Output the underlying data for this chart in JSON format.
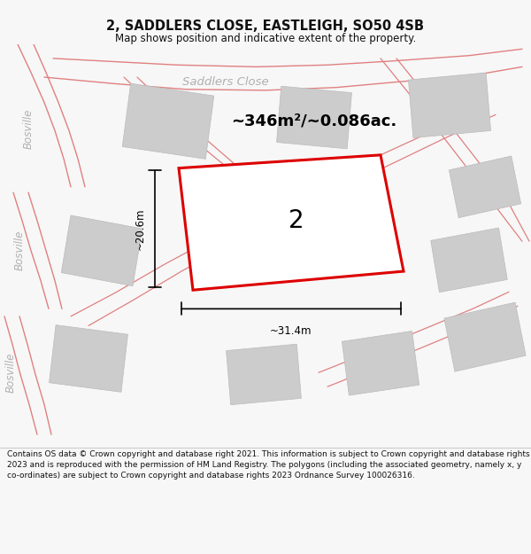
{
  "title": "2, SADDLERS CLOSE, EASTLEIGH, SO50 4SB",
  "subtitle": "Map shows position and indicative extent of the property.",
  "footer": "Contains OS data © Crown copyright and database right 2021. This information is subject to Crown copyright and database rights 2023 and is reproduced with the permission of HM Land Registry. The polygons (including the associated geometry, namely x, y co-ordinates) are subject to Crown copyright and database rights 2023 Ordnance Survey 100026316.",
  "bg_color": "#f7f7f7",
  "map_bg": "#f0f0f0",
  "road_line_color": "#e08080",
  "building_color": "#cccccc",
  "building_edge": "#bbbbbb",
  "highlight_color": "#dd0000",
  "street_label_color": "#b0b0b0",
  "area_label": "~346m²/~0.086ac.",
  "number_label": "2",
  "dim_width": "~31.4m",
  "dim_height": "~20.6m",
  "street1": "Saddlers Close",
  "bosville": "Bosville",
  "figsize": [
    6.0,
    6.25
  ],
  "dpi": 100,
  "title_fontsize": 10.5,
  "subtitle_fontsize": 8.5,
  "footer_fontsize": 6.5,
  "street_fontsize": 9.5,
  "bosville_fontsize": 8.5,
  "area_fontsize": 13,
  "number_fontsize": 20,
  "dim_fontsize": 8.5
}
